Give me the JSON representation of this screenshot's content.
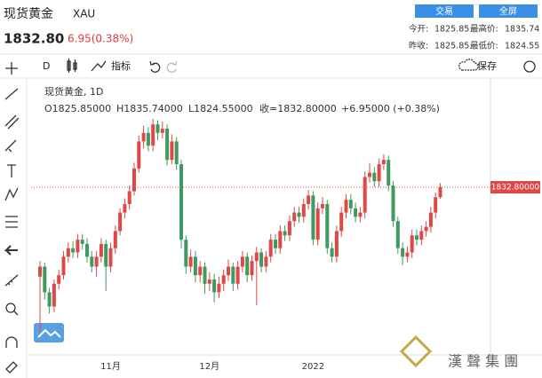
{
  "header": {
    "title": "现货黄金",
    "symbol": "XAU",
    "price": "1832.80",
    "change": "6.95(0.38%)",
    "trade_button": "交易",
    "fullscreen_button": "全屏",
    "stats": [
      [
        "今开:",
        "1825.85",
        "最高价:",
        "1835.74"
      ],
      [
        "昨收:",
        "1825.85",
        "最低价:",
        "1824.55"
      ]
    ]
  },
  "toolbar": {
    "interval": "D",
    "indicators": "指标",
    "save": "保存"
  },
  "legend": {
    "name": "现货黄金, 1D",
    "open": "O1825.85000",
    "high": "H1835.74000",
    "low": "L1824.55000",
    "close": "收=1832.80000",
    "change": "+6.95000 (+0.38%)"
  },
  "watermark": "漢 聲 集 團",
  "chart_data": {
    "type": "candlestick",
    "up_color": "#e04848",
    "down_color": "#3f9a5f",
    "categories": [
      null,
      null,
      null,
      null,
      null,
      null,
      null,
      null,
      null,
      null,
      null,
      null,
      null,
      null,
      null,
      "11月",
      null,
      null,
      null,
      null,
      null,
      null,
      null,
      null,
      null,
      null,
      null,
      null,
      null,
      null,
      null,
      null,
      null,
      null,
      null,
      null,
      "12月",
      null,
      null,
      null,
      null,
      null,
      null,
      null,
      null,
      null,
      null,
      null,
      null,
      null,
      null,
      null,
      null,
      null,
      null,
      null,
      null,
      null,
      "2022",
      null,
      null,
      null,
      null,
      null,
      null,
      null,
      null,
      null,
      null,
      null,
      null,
      null,
      null,
      null,
      null,
      null,
      null,
      null,
      null,
      null,
      null,
      null,
      null,
      null,
      null,
      null
    ],
    "open": [
      1770,
      1777,
      1759,
      1749,
      1765,
      1771,
      1784,
      1790,
      1787,
      1796,
      1793,
      1784,
      1777,
      1784,
      1793,
      1777,
      1790,
      1802,
      1815,
      1821,
      1830,
      1846,
      1865,
      1871,
      1862,
      1877,
      1871,
      1874,
      1852,
      1865,
      1849,
      1796,
      1777,
      1784,
      1771,
      1777,
      1765,
      1768,
      1759,
      1765,
      1771,
      1777,
      1765,
      1777,
      1784,
      1771,
      1781,
      1787,
      1777,
      1784,
      1796,
      1790,
      1802,
      1799,
      1809,
      1815,
      1812,
      1821,
      1827,
      1796,
      1818,
      1821,
      1790,
      1784,
      1802,
      1815,
      1824,
      1818,
      1812,
      1815,
      1840,
      1843,
      1837,
      1849,
      1852,
      1834,
      1809,
      1790,
      1784,
      1787,
      1799,
      1796,
      1802,
      1805,
      1815,
      1825.85
    ],
    "high": [
      1781,
      1780,
      1762,
      1768,
      1775,
      1788,
      1794,
      1795,
      1800,
      1800,
      1797,
      1788,
      1788,
      1797,
      1796,
      1794,
      1806,
      1818,
      1825,
      1834,
      1850,
      1869,
      1876,
      1875,
      1881,
      1880,
      1879,
      1877,
      1870,
      1868,
      1852,
      1799,
      1789,
      1788,
      1781,
      1780,
      1773,
      1772,
      1770,
      1775,
      1782,
      1780,
      1781,
      1788,
      1787,
      1785,
      1791,
      1790,
      1788,
      1800,
      1800,
      1806,
      1806,
      1813,
      1819,
      1819,
      1825,
      1831,
      1830,
      1822,
      1826,
      1824,
      1794,
      1806,
      1819,
      1828,
      1828,
      1822,
      1819,
      1844,
      1850,
      1847,
      1853,
      1856,
      1855,
      1837,
      1812,
      1794,
      1791,
      1803,
      1803,
      1806,
      1809,
      1819,
      1829,
      1835.74
    ],
    "low": [
      1731,
      1754,
      1744,
      1745,
      1761,
      1768,
      1780,
      1783,
      1783,
      1789,
      1780,
      1773,
      1770,
      1780,
      1760,
      1773,
      1786,
      1799,
      1811,
      1817,
      1827,
      1843,
      1860,
      1858,
      1858,
      1866,
      1867,
      1848,
      1849,
      1845,
      1790,
      1772,
      1773,
      1766,
      1766,
      1758,
      1760,
      1752,
      1755,
      1760,
      1767,
      1760,
      1761,
      1773,
      1766,
      1767,
      1750,
      1773,
      1773,
      1780,
      1786,
      1786,
      1795,
      1795,
      1805,
      1808,
      1808,
      1817,
      1792,
      1792,
      1814,
      1786,
      1780,
      1780,
      1798,
      1811,
      1814,
      1808,
      1808,
      1811,
      1836,
      1833,
      1833,
      1845,
      1830,
      1805,
      1786,
      1778,
      1780,
      1783,
      1792,
      1792,
      1798,
      1801,
      1811,
      1824.55
    ],
    "close": [
      1777,
      1759,
      1749,
      1765,
      1771,
      1784,
      1790,
      1787,
      1796,
      1793,
      1784,
      1777,
      1784,
      1793,
      1777,
      1790,
      1802,
      1815,
      1821,
      1830,
      1846,
      1865,
      1871,
      1862,
      1877,
      1871,
      1874,
      1852,
      1865,
      1849,
      1796,
      1777,
      1784,
      1771,
      1777,
      1765,
      1768,
      1759,
      1765,
      1771,
      1777,
      1765,
      1777,
      1784,
      1771,
      1781,
      1787,
      1777,
      1784,
      1796,
      1790,
      1802,
      1799,
      1809,
      1815,
      1812,
      1821,
      1827,
      1796,
      1818,
      1821,
      1790,
      1784,
      1802,
      1815,
      1824,
      1818,
      1812,
      1815,
      1840,
      1843,
      1837,
      1849,
      1852,
      1834,
      1809,
      1790,
      1784,
      1787,
      1799,
      1796,
      1802,
      1805,
      1815,
      1825.85,
      1832.8
    ],
    "ylim": [
      1715,
      1907
    ],
    "price_line": {
      "value": 1832.8,
      "label": "1832.80000"
    }
  }
}
